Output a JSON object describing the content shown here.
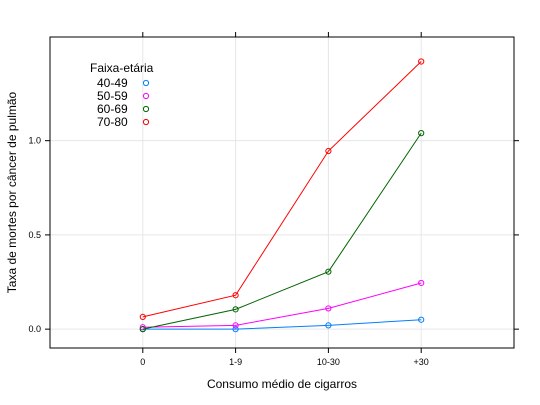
{
  "chart_data": {
    "type": "line",
    "title": "",
    "xlabel": "Consumo médio de cigarros",
    "ylabel": "Taxa de mortes por câncer de pulmão",
    "categories": [
      "0",
      "1-9",
      "10-30",
      "+30"
    ],
    "ylim": [
      -0.1,
      1.55
    ],
    "yticks": [
      0.0,
      0.5,
      1.0
    ],
    "ytick_labels": [
      "0.0",
      "0.5",
      "1.0"
    ],
    "grid": true,
    "legend_position": "top-left",
    "legend_title": "Faixa-etária",
    "series": [
      {
        "name": "40-49",
        "color": "#0080ff",
        "values": [
          0.0,
          0.0,
          0.02,
          0.05
        ]
      },
      {
        "name": "50-59",
        "color": "#ff00ff",
        "values": [
          0.01,
          0.02,
          0.11,
          0.245
        ]
      },
      {
        "name": "60-69",
        "color": "#006400",
        "values": [
          0.0,
          0.105,
          0.305,
          1.04
        ]
      },
      {
        "name": "70-80",
        "color": "#ff0000",
        "values": [
          0.065,
          0.18,
          0.945,
          1.42
        ]
      }
    ]
  }
}
